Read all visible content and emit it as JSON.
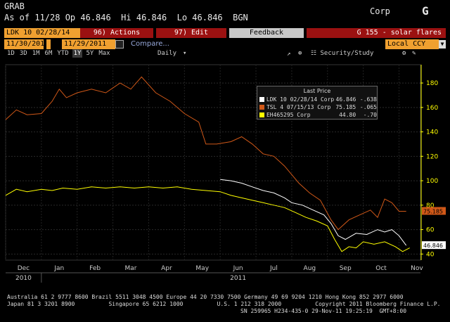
{
  "header": {
    "function": "GRAB",
    "quote": "As of 11/28 Op 46.846  Hi 46.846  Lo 46.846  BGN",
    "market": "Corp",
    "logo": "G"
  },
  "row1": {
    "security": "LDK 10 02/28/14 Corp",
    "actions": "96) Actions",
    "edit": "97) Edit",
    "feedback": "Feedback",
    "right": "G 155 - solar flares"
  },
  "row2": {
    "start_date": "11/30/2010",
    "end_date": "11/29/2011",
    "compare": "Compare...",
    "currency": "Local CCY"
  },
  "row3": {
    "periods": [
      "1D",
      "3D",
      "1M",
      "6M",
      "YTD",
      "1Y",
      "5Y",
      "Max"
    ],
    "selected": "1Y",
    "frequency": "Daily",
    "study": "Security/Study"
  },
  "legend": {
    "title": "Last Price",
    "rows": [
      {
        "name": "LDK 10 02/28/14 Corp",
        "price": "46.846",
        "chg": "-.638",
        "color": "#ffffff"
      },
      {
        "name": "TSL 4 07/15/13 Corp",
        "price": "75.185",
        "chg": "-.065",
        "color": "#d05818"
      },
      {
        "name": "EH465295 Corp",
        "price": "44.80",
        "chg": "-.70",
        "color": "#ffff00"
      }
    ]
  },
  "last_labels": {
    "tsl": "75.185",
    "ldk": "46.846"
  },
  "footer": {
    "line1": "Australia 61 2 9777 8600 Brazil 5511 3048 4500 Europe 44 20 7330 7500 Germany 49 69 9204 1210 Hong Kong 852 2977 6000",
    "line2": "Japan 81 3 3201 8900          Singapore 65 6212 1000          U.S. 1 212 318 2000          Copyright 2011 Bloomberg Finance L.P.",
    "line3": "SN 259965 H234-435-0 29-Nov-11 19:25:19  GMT+8:00"
  },
  "chart_data": {
    "type": "line",
    "x": [
      "Dec 2010",
      "Jan",
      "Feb",
      "Mar",
      "Apr",
      "May",
      "Jun",
      "Jul",
      "Aug",
      "Sep",
      "Oct",
      "Nov"
    ],
    "x_labels": [
      "Dec",
      "Jan",
      "Feb",
      "Mar",
      "Apr",
      "May",
      "Jun",
      "Jul",
      "Aug",
      "Sep",
      "Oct",
      "Nov"
    ],
    "year_labels": [
      "2010",
      "2011"
    ],
    "yticks": [
      40,
      60,
      80,
      100,
      120,
      140,
      160,
      180
    ],
    "ylim": [
      35,
      195
    ],
    "grid": true,
    "series": [
      {
        "name": "TSL 4 07/15/13 Corp",
        "color": "#d05818",
        "x": [
          0,
          0.3,
          0.6,
          1.0,
          1.3,
          1.5,
          1.7,
          2.0,
          2.4,
          2.8,
          3.2,
          3.5,
          3.8,
          4.2,
          4.6,
          5.0,
          5.4,
          5.6,
          5.9,
          6.3,
          6.6,
          6.9,
          7.2,
          7.5,
          7.8,
          8.2,
          8.5,
          8.8,
          9.1,
          9.3,
          9.6,
          9.9,
          10.2,
          10.4,
          10.6,
          10.8,
          11.0,
          11.2
        ],
        "values": [
          150,
          158,
          154,
          155,
          165,
          175,
          168,
          172,
          175,
          172,
          180,
          175,
          185,
          172,
          165,
          155,
          148,
          130,
          130,
          132,
          136,
          130,
          122,
          120,
          112,
          98,
          90,
          84,
          68,
          60,
          68,
          72,
          76,
          70,
          85,
          82,
          75,
          75
        ]
      },
      {
        "name": "LDK 10 02/28/14 Corp",
        "color": "#ffffff",
        "x": [
          6.0,
          6.3,
          6.6,
          6.9,
          7.2,
          7.5,
          7.8,
          8.0,
          8.3,
          8.6,
          8.9,
          9.1,
          9.3,
          9.5,
          9.8,
          10.1,
          10.4,
          10.6,
          10.8,
          11.0,
          11.2
        ],
        "values": [
          101,
          100,
          98,
          95,
          92,
          90,
          86,
          82,
          80,
          76,
          72,
          65,
          55,
          52,
          57,
          56,
          60,
          58,
          60,
          55,
          47
        ]
      },
      {
        "name": "EH465295 Corp",
        "color": "#ffff00",
        "x": [
          0,
          0.3,
          0.6,
          1.0,
          1.3,
          1.6,
          2.0,
          2.4,
          2.8,
          3.2,
          3.6,
          4.0,
          4.4,
          4.8,
          5.2,
          5.6,
          6.0,
          6.3,
          6.6,
          6.9,
          7.2,
          7.5,
          7.8,
          8.1,
          8.4,
          8.7,
          9.0,
          9.2,
          9.4,
          9.6,
          9.8,
          10.0,
          10.3,
          10.6,
          10.9,
          11.1,
          11.3
        ],
        "values": [
          88,
          93,
          91,
          93,
          92,
          94,
          93,
          95,
          94,
          95,
          94,
          95,
          94,
          95,
          93,
          92,
          91,
          88,
          86,
          84,
          82,
          80,
          78,
          74,
          70,
          67,
          63,
          52,
          42,
          46,
          45,
          50,
          48,
          50,
          46,
          42,
          45
        ]
      }
    ]
  }
}
